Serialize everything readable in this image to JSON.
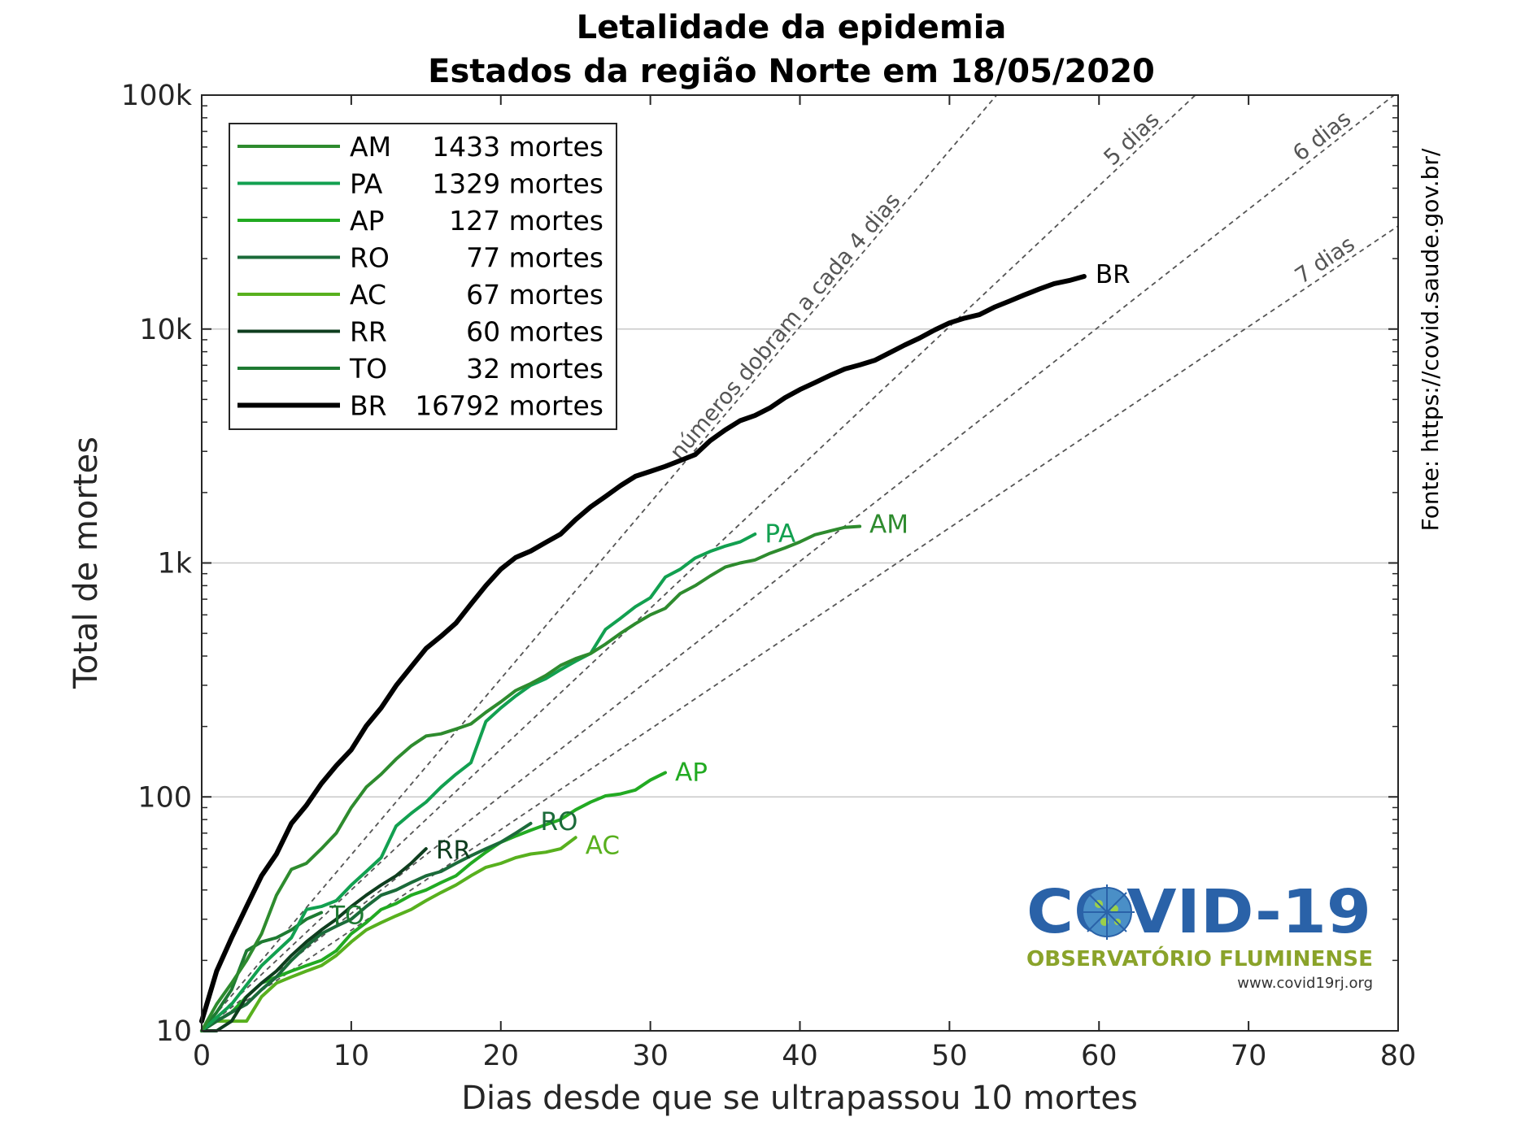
{
  "chart_data": {
    "type": "line",
    "title": "Letalidade da epidemia",
    "subtitle": "Estados da região Norte em 18/05/2020",
    "xlabel": "Dias desde que se ultrapassou 10 mortes",
    "ylabel": "Total de mortes",
    "xlim": [
      0,
      80
    ],
    "ylim": [
      10,
      100000
    ],
    "yscale": "log",
    "grid": "horizontal",
    "legend_position": "top-left",
    "x_ticks": [
      "0",
      "10",
      "20",
      "30",
      "40",
      "50",
      "60",
      "70",
      "80"
    ],
    "y_ticks": [
      "10",
      "100",
      "1k",
      "10k",
      "100k"
    ],
    "source": "Fonte: https://covid.saude.gov.br/",
    "reference_lines": [
      {
        "label": "números dobram a cada 4 dias",
        "doubling_days": 4
      },
      {
        "label": "5 dias",
        "doubling_days": 5
      },
      {
        "label": "6 dias",
        "doubling_days": 6
      },
      {
        "label": "7 dias",
        "doubling_days": 7
      }
    ],
    "series": [
      {
        "name": "AM",
        "deaths_label": "1433 mortes",
        "color": "#2e8b2e",
        "width": 4,
        "label_color": "#2e8b2e",
        "points": [
          [
            0,
            10
          ],
          [
            1,
            13
          ],
          [
            2,
            16
          ],
          [
            3,
            20
          ],
          [
            4,
            26
          ],
          [
            5,
            38
          ],
          [
            6,
            49
          ],
          [
            7,
            52
          ],
          [
            8,
            60
          ],
          [
            9,
            70
          ],
          [
            10,
            90
          ],
          [
            11,
            110
          ],
          [
            12,
            125
          ],
          [
            13,
            145
          ],
          [
            14,
            165
          ],
          [
            15,
            182
          ],
          [
            16,
            186
          ],
          [
            17,
            195
          ],
          [
            18,
            205
          ],
          [
            19,
            230
          ],
          [
            20,
            255
          ],
          [
            21,
            285
          ],
          [
            22,
            305
          ],
          [
            23,
            330
          ],
          [
            24,
            365
          ],
          [
            25,
            390
          ],
          [
            26,
            410
          ],
          [
            27,
            450
          ],
          [
            28,
            500
          ],
          [
            29,
            550
          ],
          [
            30,
            600
          ],
          [
            31,
            640
          ],
          [
            32,
            740
          ],
          [
            33,
            800
          ],
          [
            34,
            880
          ],
          [
            35,
            960
          ],
          [
            36,
            1000
          ],
          [
            37,
            1030
          ],
          [
            38,
            1100
          ],
          [
            39,
            1160
          ],
          [
            40,
            1230
          ],
          [
            41,
            1320
          ],
          [
            42,
            1370
          ],
          [
            43,
            1420
          ],
          [
            44,
            1433
          ]
        ]
      },
      {
        "name": "PA",
        "deaths_label": "1329 mortes",
        "color": "#12a050",
        "width": 4,
        "label_color": "#12a050",
        "points": [
          [
            0,
            10
          ],
          [
            2,
            13
          ],
          [
            4,
            19
          ],
          [
            6,
            25
          ],
          [
            7,
            33
          ],
          [
            8,
            34
          ],
          [
            9,
            36
          ],
          [
            10,
            42
          ],
          [
            11,
            48
          ],
          [
            12,
            55
          ],
          [
            13,
            75
          ],
          [
            14,
            85
          ],
          [
            15,
            95
          ],
          [
            16,
            110
          ],
          [
            17,
            125
          ],
          [
            18,
            140
          ],
          [
            19,
            210
          ],
          [
            20,
            240
          ],
          [
            21,
            270
          ],
          [
            22,
            300
          ],
          [
            23,
            320
          ],
          [
            24,
            350
          ],
          [
            25,
            380
          ],
          [
            26,
            410
          ],
          [
            27,
            520
          ],
          [
            28,
            580
          ],
          [
            29,
            650
          ],
          [
            30,
            710
          ],
          [
            31,
            870
          ],
          [
            32,
            940
          ],
          [
            33,
            1050
          ],
          [
            34,
            1120
          ],
          [
            35,
            1180
          ],
          [
            36,
            1230
          ],
          [
            37,
            1329
          ]
        ]
      },
      {
        "name": "AP",
        "deaths_label": "127 mortes",
        "color": "#22aa22",
        "width": 4,
        "label_color": "#22aa22",
        "points": [
          [
            0,
            10
          ],
          [
            1,
            11
          ],
          [
            2,
            12
          ],
          [
            3,
            14
          ],
          [
            4,
            16
          ],
          [
            5,
            17
          ],
          [
            6,
            18
          ],
          [
            7,
            19
          ],
          [
            8,
            20
          ],
          [
            9,
            22
          ],
          [
            10,
            26
          ],
          [
            11,
            29
          ],
          [
            12,
            33
          ],
          [
            13,
            35
          ],
          [
            14,
            38
          ],
          [
            15,
            40
          ],
          [
            16,
            43
          ],
          [
            17,
            46
          ],
          [
            18,
            52
          ],
          [
            19,
            58
          ],
          [
            20,
            64
          ],
          [
            21,
            68
          ],
          [
            22,
            72
          ],
          [
            23,
            76
          ],
          [
            24,
            80
          ],
          [
            25,
            88
          ],
          [
            26,
            95
          ],
          [
            27,
            101
          ],
          [
            28,
            103
          ],
          [
            29,
            107
          ],
          [
            30,
            118
          ],
          [
            31,
            127
          ]
        ]
      },
      {
        "name": "RO",
        "deaths_label": "77 mortes",
        "color": "#1b6b3a",
        "width": 4,
        "label_color": "#1b6b3a",
        "points": [
          [
            0,
            10
          ],
          [
            1,
            11
          ],
          [
            2,
            12
          ],
          [
            3,
            13
          ],
          [
            4,
            15
          ],
          [
            5,
            17
          ],
          [
            6,
            20
          ],
          [
            7,
            23
          ],
          [
            8,
            26
          ],
          [
            9,
            28
          ],
          [
            10,
            30
          ],
          [
            11,
            34
          ],
          [
            12,
            38
          ],
          [
            13,
            40
          ],
          [
            14,
            43
          ],
          [
            15,
            46
          ],
          [
            16,
            48
          ],
          [
            17,
            52
          ],
          [
            18,
            56
          ],
          [
            19,
            60
          ],
          [
            20,
            64
          ],
          [
            21,
            70
          ],
          [
            22,
            77
          ]
        ]
      },
      {
        "name": "AC",
        "deaths_label": "67 mortes",
        "color": "#58b01e",
        "width": 4,
        "label_color": "#58b01e",
        "points": [
          [
            0,
            10
          ],
          [
            1,
            11
          ],
          [
            2,
            11
          ],
          [
            3,
            11
          ],
          [
            4,
            14
          ],
          [
            5,
            16
          ],
          [
            6,
            17
          ],
          [
            7,
            18
          ],
          [
            8,
            19
          ],
          [
            9,
            21
          ],
          [
            10,
            24
          ],
          [
            11,
            27
          ],
          [
            12,
            29
          ],
          [
            13,
            31
          ],
          [
            14,
            33
          ],
          [
            15,
            36
          ],
          [
            16,
            39
          ],
          [
            17,
            42
          ],
          [
            18,
            46
          ],
          [
            19,
            50
          ],
          [
            20,
            52
          ],
          [
            21,
            55
          ],
          [
            22,
            57
          ],
          [
            23,
            58
          ],
          [
            24,
            60
          ],
          [
            25,
            67
          ]
        ]
      },
      {
        "name": "RR",
        "deaths_label": "60 mortes",
        "color": "#0e3d1e",
        "width": 4,
        "label_color": "#0e3d1e",
        "points": [
          [
            0,
            10
          ],
          [
            1,
            10
          ],
          [
            2,
            11
          ],
          [
            3,
            14
          ],
          [
            4,
            16
          ],
          [
            5,
            18
          ],
          [
            6,
            21
          ],
          [
            7,
            24
          ],
          [
            8,
            27
          ],
          [
            9,
            30
          ],
          [
            10,
            34
          ],
          [
            11,
            38
          ],
          [
            12,
            42
          ],
          [
            13,
            46
          ],
          [
            14,
            52
          ],
          [
            15,
            60
          ]
        ]
      },
      {
        "name": "TO",
        "deaths_label": "32 mortes",
        "color": "#1e7a32",
        "width": 4,
        "label_color": "#1e7a32",
        "points": [
          [
            0,
            10
          ],
          [
            1,
            12
          ],
          [
            2,
            15
          ],
          [
            3,
            22
          ],
          [
            4,
            24
          ],
          [
            5,
            25
          ],
          [
            6,
            27
          ],
          [
            7,
            30
          ],
          [
            8,
            32
          ]
        ]
      },
      {
        "name": "BR",
        "deaths_label": "16792 mortes",
        "color": "#000000",
        "width": 6,
        "label_color": "#000000",
        "points": [
          [
            0,
            11
          ],
          [
            1,
            18
          ],
          [
            2,
            25
          ],
          [
            3,
            34
          ],
          [
            4,
            46
          ],
          [
            5,
            57
          ],
          [
            6,
            77
          ],
          [
            7,
            92
          ],
          [
            8,
            114
          ],
          [
            9,
            136
          ],
          [
            10,
            159
          ],
          [
            11,
            201
          ],
          [
            12,
            240
          ],
          [
            13,
            299
          ],
          [
            14,
            359
          ],
          [
            15,
            431
          ],
          [
            16,
            486
          ],
          [
            17,
            553
          ],
          [
            18,
            667
          ],
          [
            19,
            800
          ],
          [
            20,
            941
          ],
          [
            21,
            1056
          ],
          [
            22,
            1124
          ],
          [
            23,
            1223
          ],
          [
            24,
            1328
          ],
          [
            25,
            1532
          ],
          [
            26,
            1736
          ],
          [
            27,
            1924
          ],
          [
            28,
            2141
          ],
          [
            29,
            2347
          ],
          [
            30,
            2462
          ],
          [
            31,
            2587
          ],
          [
            32,
            2741
          ],
          [
            33,
            2906
          ],
          [
            34,
            3331
          ],
          [
            35,
            3704
          ],
          [
            36,
            4057
          ],
          [
            37,
            4271
          ],
          [
            38,
            4603
          ],
          [
            39,
            5083
          ],
          [
            40,
            5513
          ],
          [
            41,
            5901
          ],
          [
            42,
            6329
          ],
          [
            43,
            6750
          ],
          [
            44,
            7025
          ],
          [
            45,
            7343
          ],
          [
            46,
            7921
          ],
          [
            47,
            8536
          ],
          [
            48,
            9146
          ],
          [
            49,
            9897
          ],
          [
            50,
            10627
          ],
          [
            51,
            11123
          ],
          [
            52,
            11519
          ],
          [
            53,
            12400
          ],
          [
            54,
            13149
          ],
          [
            55,
            13993
          ],
          [
            56,
            14817
          ],
          [
            57,
            15633
          ],
          [
            58,
            16118
          ],
          [
            59,
            16792
          ]
        ]
      }
    ],
    "end_labels": [
      {
        "text": "BR",
        "series": "BR"
      },
      {
        "text": "AM",
        "series": "AM"
      },
      {
        "text": "PA",
        "series": "PA"
      },
      {
        "text": "AP",
        "series": "AP"
      },
      {
        "text": "RO",
        "series": "RO"
      },
      {
        "text": "AC",
        "series": "AC"
      },
      {
        "text": "RR",
        "series": "RR"
      },
      {
        "text": "TO",
        "series": "TO"
      }
    ]
  },
  "logo": {
    "main": "COVID-19",
    "subtitle": "OBSERVATÓRIO FLUMINENSE",
    "url": "www.covid19rj.org"
  }
}
